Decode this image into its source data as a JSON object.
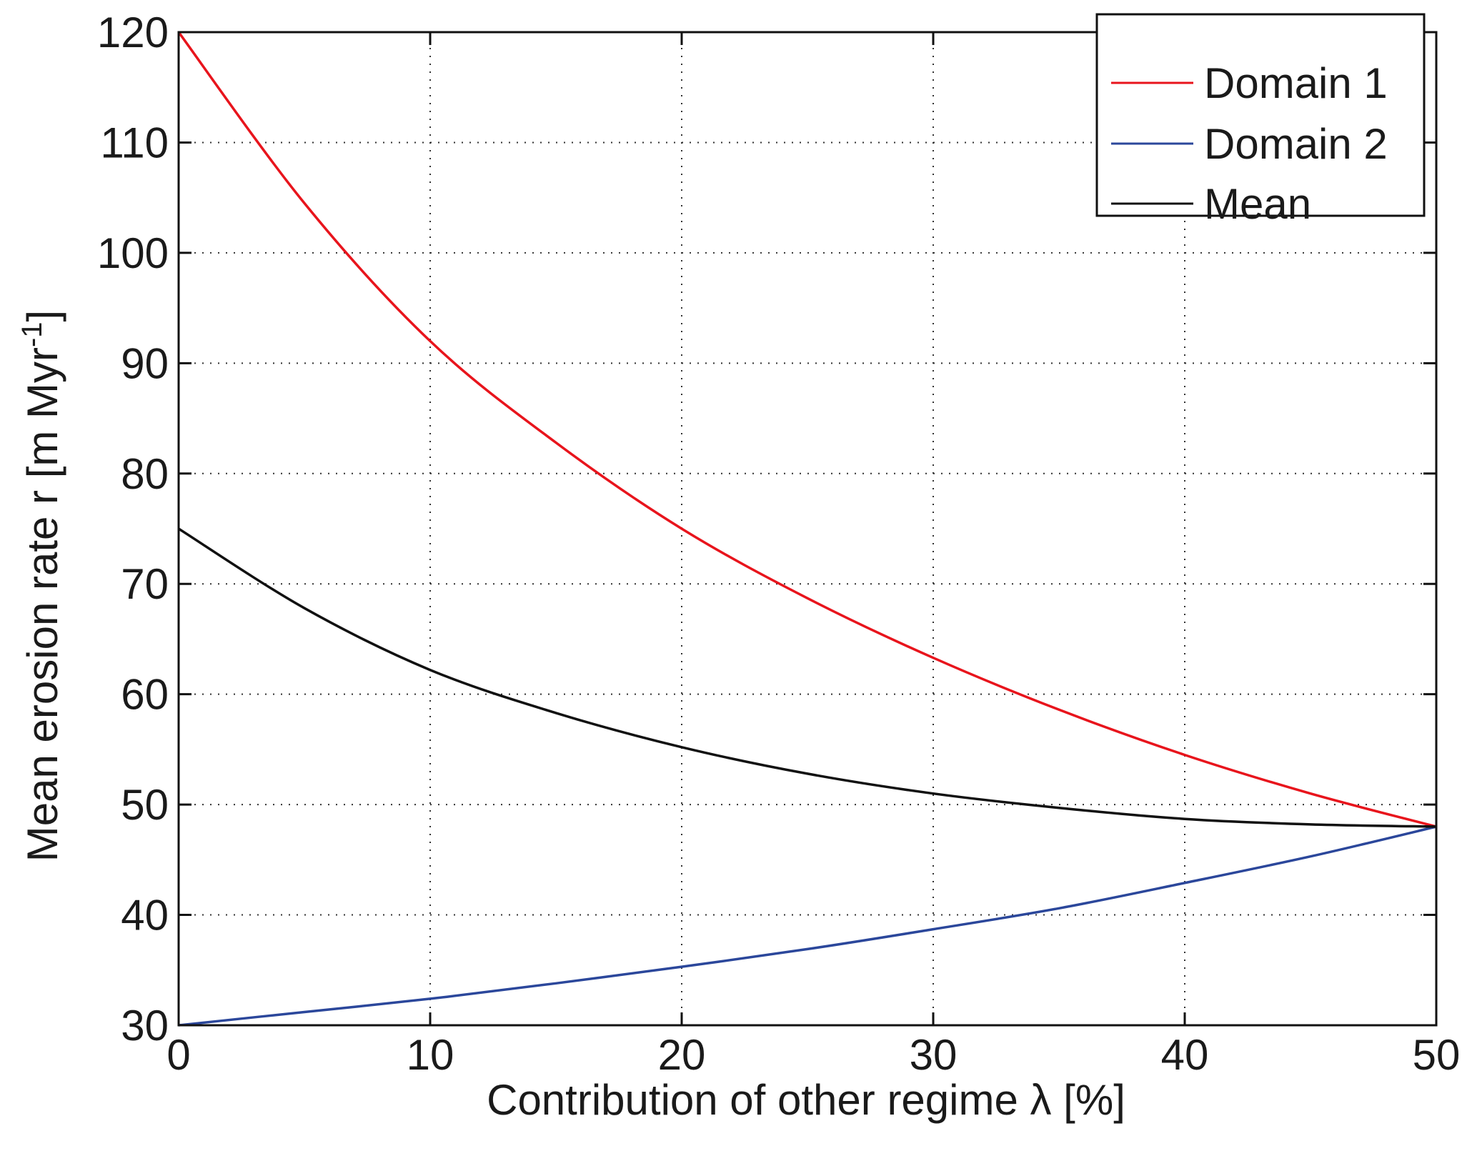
{
  "chart_data": {
    "type": "line",
    "title": "",
    "xlabel": "Contribution of other regime λ [%]",
    "ylabel_main": "Mean erosion rate r [m Myr",
    "ylabel_sup": "-1",
    "ylabel_end": "]",
    "xlim": [
      0,
      50
    ],
    "ylim": [
      30,
      120
    ],
    "xticks": [
      0,
      10,
      20,
      30,
      40,
      50
    ],
    "yticks": [
      30,
      40,
      50,
      60,
      70,
      80,
      90,
      100,
      110,
      120
    ],
    "grid": true,
    "legend_position": "top-right",
    "x": [
      0,
      5,
      10,
      15,
      20,
      25,
      30,
      35,
      40,
      45,
      50
    ],
    "series": [
      {
        "name": "Domain 1",
        "color": "#e8141c",
        "values": [
          120,
          104.5,
          92.0,
          82.8,
          75.0,
          68.7,
          63.3,
          58.6,
          54.5,
          51.0,
          48.0
        ]
      },
      {
        "name": "Domain 2",
        "color": "#2b479b",
        "values": [
          30,
          31.2,
          32.4,
          33.8,
          35.3,
          36.9,
          38.7,
          40.6,
          42.9,
          45.3,
          48.0
        ]
      },
      {
        "name": "Mean",
        "color": "#111111",
        "values": [
          75,
          67.8,
          62.2,
          58.3,
          55.2,
          52.8,
          51.0,
          49.7,
          48.7,
          48.2,
          48.0
        ]
      }
    ]
  }
}
